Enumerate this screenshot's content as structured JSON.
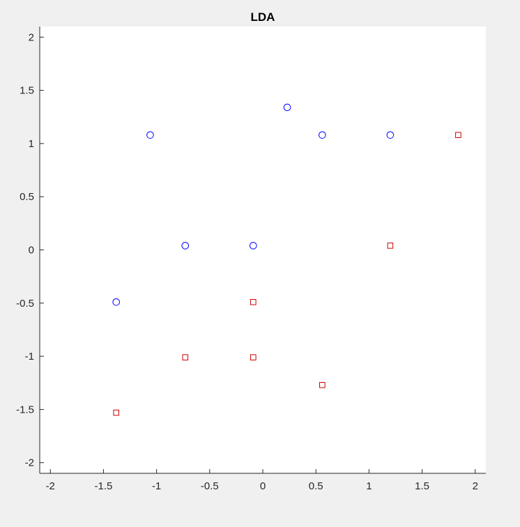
{
  "chart_data": {
    "type": "scatter",
    "title": "LDA",
    "xlabel": "",
    "ylabel": "",
    "xlim": [
      -2.1,
      2.1
    ],
    "ylim": [
      -2.1,
      2.1
    ],
    "xticks": [
      -2,
      -1.5,
      -1,
      -0.5,
      0,
      0.5,
      1,
      1.5,
      2
    ],
    "yticks": [
      -2,
      -1.5,
      -1,
      -0.5,
      0,
      0.5,
      1,
      1.5,
      2
    ],
    "grid": false,
    "series": [
      {
        "marker": "circle",
        "color": "#0000ff",
        "points": [
          [
            -1.06,
            1.08
          ],
          [
            0.23,
            1.34
          ],
          [
            0.56,
            1.08
          ],
          [
            1.2,
            1.08
          ],
          [
            -0.73,
            0.04
          ],
          [
            -0.09,
            0.04
          ],
          [
            -1.38,
            -0.49
          ]
        ]
      },
      {
        "marker": "square",
        "color": "#cc0000",
        "points": [
          [
            1.84,
            1.08
          ],
          [
            1.2,
            0.04
          ],
          [
            -0.09,
            -0.49
          ],
          [
            -0.73,
            -1.01
          ],
          [
            -0.09,
            -1.01
          ],
          [
            0.56,
            -1.27
          ],
          [
            -1.38,
            -1.53
          ]
        ]
      }
    ]
  }
}
